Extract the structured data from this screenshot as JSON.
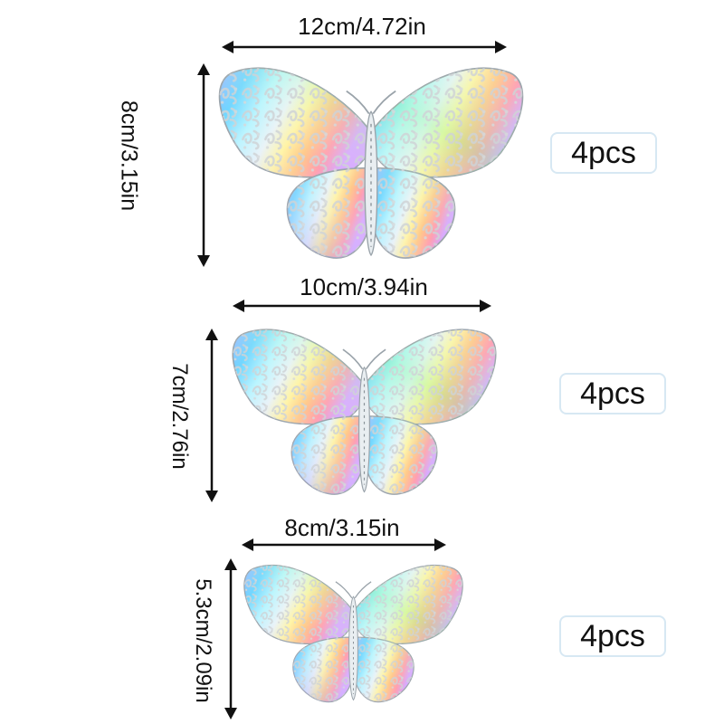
{
  "products": [
    {
      "width_label": "12cm/4.72in",
      "height_label": "8cm/3.15in",
      "quantity": "4pcs"
    },
    {
      "width_label": "10cm/3.94in",
      "height_label": "7cm/2.76in",
      "quantity": "4pcs"
    },
    {
      "width_label": "8cm/3.15in",
      "height_label": "5.3cm/2.09in",
      "quantity": "4pcs"
    }
  ],
  "colors": {
    "background": "#ffffff",
    "arrow": "#111111",
    "badge_border": "#d7e8f3"
  }
}
